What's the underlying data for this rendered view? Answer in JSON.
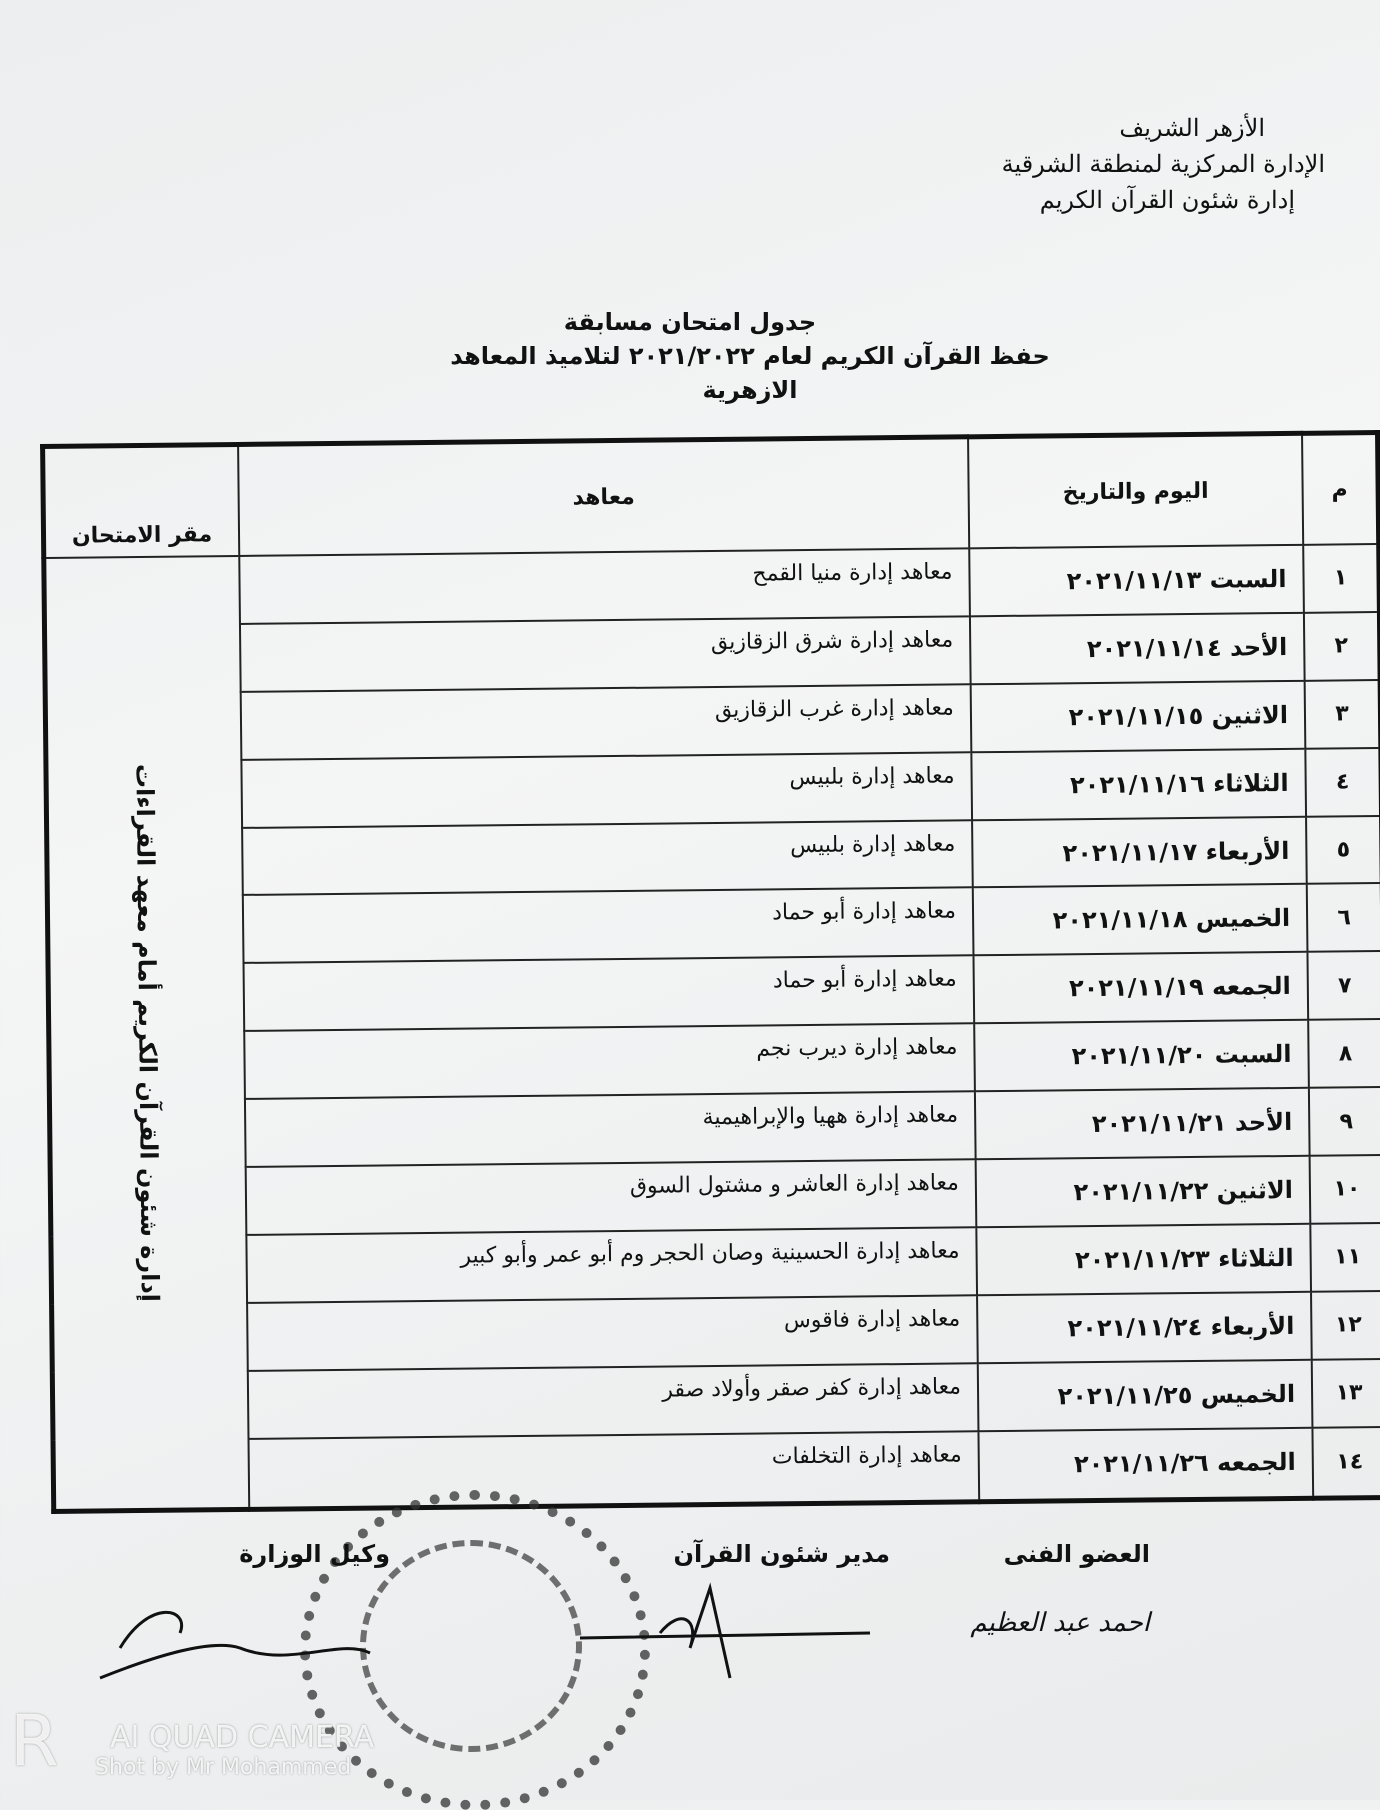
{
  "header": {
    "lines": [
      "الأزهر الشريف",
      "الإدارة المركزية لمنطقة الشرقية",
      "إدارة شئون القرآن الكريم"
    ]
  },
  "title": {
    "line1": "جدول امتحان مسابقة",
    "line2": "حفظ القرآن الكريم لعام ٢٠٢١/٢٠٢٢ لتلاميذ المعاهد الازهرية"
  },
  "table": {
    "headers": {
      "num": "م",
      "date": "اليوم والتاريخ",
      "institutes": "معاهد",
      "location": "مقر الامتحان"
    },
    "location": "إدارة شئون القرآن الكريم أمام معهد القراءات",
    "rows": [
      {
        "num": "١",
        "date": "السبت ٢٠٢١/١١/١٣",
        "institutes": "معاهد إدارة منيا القمح"
      },
      {
        "num": "٢",
        "date": "الأحد ٢٠٢١/١١/١٤",
        "institutes": "معاهد إدارة شرق الزقازيق"
      },
      {
        "num": "٣",
        "date": "الاثنين ٢٠٢١/١١/١٥",
        "institutes": "معاهد إدارة غرب الزقازيق"
      },
      {
        "num": "٤",
        "date": "الثلاثاء ٢٠٢١/١١/١٦",
        "institutes": "معاهد إدارة بلبيس"
      },
      {
        "num": "٥",
        "date": "الأربعاء ٢٠٢١/١١/١٧",
        "institutes": "معاهد إدارة بلبيس"
      },
      {
        "num": "٦",
        "date": "الخميس ٢٠٢١/١١/١٨",
        "institutes": "معاهد إدارة أبو حماد"
      },
      {
        "num": "٧",
        "date": "الجمعه ٢٠٢١/١١/١٩",
        "institutes": "معاهد إدارة أبو حماد"
      },
      {
        "num": "٨",
        "date": "السبت ٢٠٢١/١١/٢٠",
        "institutes": "معاهد إدارة ديرب نجم"
      },
      {
        "num": "٩",
        "date": "الأحد ٢٠٢١/١١/٢١",
        "institutes": "معاهد إدارة ههيا والإبراهيمية"
      },
      {
        "num": "١٠",
        "date": "الاثنين ٢٠٢١/١١/٢٢",
        "institutes": "معاهد إدارة العاشر و مشتول السوق"
      },
      {
        "num": "١١",
        "date": "الثلاثاء ٢٠٢١/١١/٢٣",
        "institutes": "معاهد إدارة الحسينية وصان الحجر وم أبو عمر وأبو كبير"
      },
      {
        "num": "١٢",
        "date": "الأربعاء ٢٠٢١/١١/٢٤",
        "institutes": "معاهد إدارة فاقوس"
      },
      {
        "num": "١٣",
        "date": "الخميس ٢٠٢١/١١/٢٥",
        "institutes": "معاهد إدارة كفر صقر وأولاد صقر"
      },
      {
        "num": "١٤",
        "date": "الجمعه ٢٠٢١/١١/٢٦",
        "institutes": "معاهد إدارة التخلفات"
      }
    ]
  },
  "signatures": {
    "technical_member": "العضو الفنى",
    "quran_director": "مدير شئون القرآن",
    "deputy_minister": "وكيل الوزارة",
    "handwritten_name": "احمد عبد العظيم"
  },
  "watermark": {
    "brand": "AI QUAD CAMERA",
    "credit": "Shot by Mr Mohammed"
  }
}
